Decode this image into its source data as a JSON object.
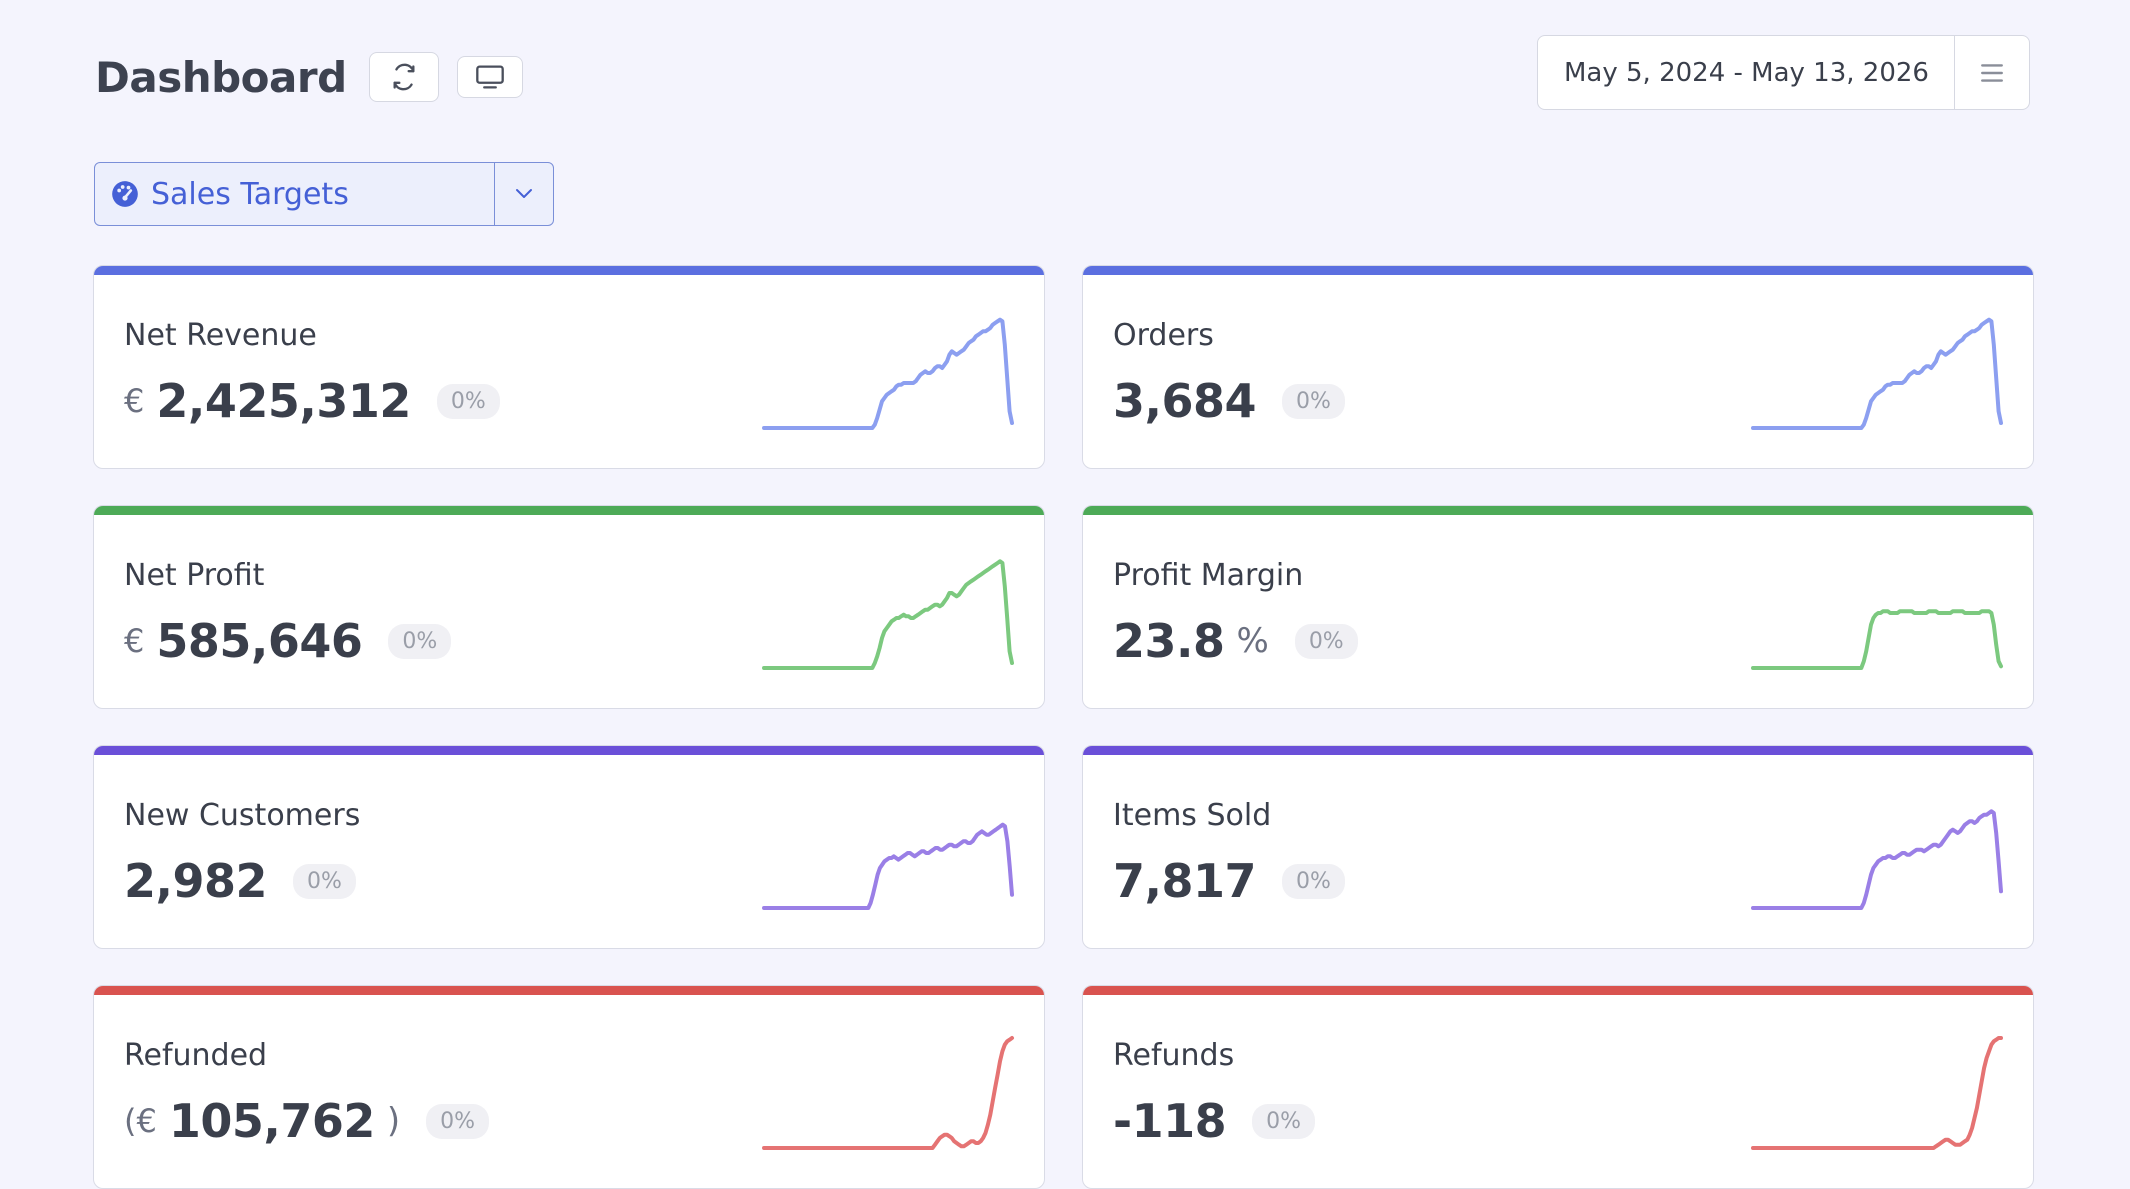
{
  "header": {
    "title": "Dashboard"
  },
  "date_range": {
    "label": "May 5, 2024 - May 13, 2026"
  },
  "report": {
    "label": "Sales Targets"
  },
  "icons": {
    "refresh": "refresh-icon",
    "monitor": "monitor-icon",
    "menu": "menu-icon",
    "gauge": "gauge-icon",
    "caret": "chevron-down-icon"
  },
  "cards": [
    {
      "label": "Net Revenue",
      "currency": "€",
      "value": "2,425,312",
      "unit": "",
      "badge": "0%",
      "color": "#5b6fe0",
      "spark_color": "#8c9ff0",
      "spark": [
        0,
        0,
        0,
        0,
        0,
        0,
        0,
        0,
        0,
        0,
        0,
        0,
        0,
        0,
        0,
        0,
        0,
        0,
        0,
        0,
        0,
        0,
        0,
        0,
        0,
        0,
        0,
        0,
        0,
        0,
        0,
        0,
        0,
        0,
        0,
        0,
        0,
        0,
        0,
        0,
        0,
        0,
        0,
        0,
        0,
        0,
        2,
        6,
        11,
        16,
        18,
        20,
        21,
        22,
        23,
        25,
        26,
        26,
        27,
        27,
        27,
        27,
        27,
        28,
        30,
        32,
        33,
        34,
        33,
        33,
        34,
        36,
        37,
        37,
        36,
        38,
        40,
        44,
        46,
        45,
        44,
        45,
        46,
        47,
        49,
        51,
        52,
        53,
        55,
        56,
        57,
        58,
        58,
        59,
        60,
        62,
        63,
        64,
        65,
        64,
        50,
        30,
        10,
        3
      ]
    },
    {
      "label": "Orders",
      "currency": "",
      "value": "3,684",
      "unit": "",
      "badge": "0%",
      "color": "#5b6fe0",
      "spark_color": "#8c9ff0",
      "spark": [
        0,
        0,
        0,
        0,
        0,
        0,
        0,
        0,
        0,
        0,
        0,
        0,
        0,
        0,
        0,
        0,
        0,
        0,
        0,
        0,
        0,
        0,
        0,
        0,
        0,
        0,
        0,
        0,
        0,
        0,
        0,
        0,
        0,
        0,
        0,
        0,
        0,
        0,
        0,
        0,
        0,
        0,
        0,
        0,
        0,
        0,
        2,
        6,
        11,
        16,
        18,
        20,
        21,
        22,
        23,
        25,
        26,
        26,
        27,
        27,
        27,
        27,
        27,
        28,
        30,
        32,
        33,
        34,
        33,
        33,
        34,
        36,
        37,
        37,
        36,
        38,
        40,
        44,
        46,
        45,
        44,
        45,
        46,
        47,
        49,
        51,
        52,
        53,
        55,
        56,
        57,
        58,
        58,
        59,
        60,
        62,
        63,
        64,
        65,
        64,
        50,
        30,
        10,
        3
      ]
    },
    {
      "label": "Net Profit",
      "currency": "€",
      "value": "585,646",
      "unit": "",
      "badge": "0%",
      "color": "#4daa57",
      "spark_color": "#7cc97f",
      "spark": [
        0,
        0,
        0,
        0,
        0,
        0,
        0,
        0,
        0,
        0,
        0,
        0,
        0,
        0,
        0,
        0,
        0,
        0,
        0,
        0,
        0,
        0,
        0,
        0,
        0,
        0,
        0,
        0,
        0,
        0,
        0,
        0,
        0,
        0,
        0,
        0,
        0,
        0,
        0,
        0,
        0,
        0,
        0,
        0,
        0,
        0,
        3,
        7,
        12,
        18,
        22,
        24,
        26,
        28,
        29,
        30,
        30,
        31,
        32,
        31,
        31,
        30,
        30,
        31,
        32,
        33,
        34,
        35,
        35,
        36,
        37,
        38,
        38,
        37,
        38,
        40,
        42,
        45,
        45,
        44,
        43,
        44,
        46,
        48,
        50,
        51,
        52,
        53,
        54,
        55,
        56,
        57,
        58,
        59,
        60,
        61,
        62,
        63,
        64,
        63,
        49,
        30,
        10,
        3
      ]
    },
    {
      "label": "Profit Margin",
      "currency": "",
      "value": "23.8",
      "unit": "%",
      "badge": "0%",
      "color": "#4daa57",
      "spark_color": "#7cc97f",
      "spark": [
        0,
        0,
        0,
        0,
        0,
        0,
        0,
        0,
        0,
        0,
        0,
        0,
        0,
        0,
        0,
        0,
        0,
        0,
        0,
        0,
        0,
        0,
        0,
        0,
        0,
        0,
        0,
        0,
        0,
        0,
        0,
        0,
        0,
        0,
        0,
        0,
        0,
        0,
        0,
        0,
        0,
        0,
        0,
        0,
        0,
        0,
        4,
        10,
        18,
        26,
        30,
        32,
        33,
        33,
        34,
        34,
        34,
        33,
        33,
        33,
        33,
        34,
        34,
        34,
        34,
        34,
        34,
        33,
        33,
        33,
        33,
        33,
        33,
        34,
        34,
        34,
        34,
        33,
        33,
        33,
        33,
        33,
        33,
        34,
        34,
        34,
        34,
        34,
        33,
        33,
        33,
        33,
        33,
        33,
        33,
        34,
        34,
        34,
        34,
        33,
        26,
        14,
        4,
        1
      ]
    },
    {
      "label": "New Customers",
      "currency": "",
      "value": "2,982",
      "unit": "",
      "badge": "0%",
      "color": "#6a4fd8",
      "spark_color": "#9a7fe6",
      "spark": [
        0,
        0,
        0,
        0,
        0,
        0,
        0,
        0,
        0,
        0,
        0,
        0,
        0,
        0,
        0,
        0,
        0,
        0,
        0,
        0,
        0,
        0,
        0,
        0,
        0,
        0,
        0,
        0,
        0,
        0,
        0,
        0,
        0,
        0,
        0,
        0,
        0,
        0,
        0,
        0,
        0,
        0,
        0,
        0,
        0,
        0,
        3,
        8,
        14,
        20,
        24,
        26,
        28,
        29,
        30,
        30,
        31,
        30,
        29,
        30,
        31,
        32,
        33,
        33,
        32,
        31,
        32,
        33,
        34,
        34,
        33,
        33,
        34,
        35,
        36,
        36,
        35,
        35,
        36,
        37,
        38,
        38,
        37,
        37,
        38,
        39,
        40,
        40,
        39,
        39,
        40,
        42,
        44,
        45,
        46,
        45,
        44,
        44,
        45,
        46,
        47,
        48,
        49,
        50,
        49,
        40,
        25,
        8
      ]
    },
    {
      "label": "Items Sold",
      "currency": "",
      "value": "7,817",
      "unit": "",
      "badge": "0%",
      "color": "#6a4fd8",
      "spark_color": "#9a7fe6",
      "spark": [
        0,
        0,
        0,
        0,
        0,
        0,
        0,
        0,
        0,
        0,
        0,
        0,
        0,
        0,
        0,
        0,
        0,
        0,
        0,
        0,
        0,
        0,
        0,
        0,
        0,
        0,
        0,
        0,
        0,
        0,
        0,
        0,
        0,
        0,
        0,
        0,
        0,
        0,
        0,
        0,
        0,
        0,
        0,
        0,
        0,
        0,
        3,
        8,
        14,
        20,
        24,
        26,
        28,
        29,
        30,
        30,
        31,
        31,
        30,
        30,
        31,
        32,
        33,
        33,
        32,
        32,
        33,
        34,
        35,
        35,
        35,
        34,
        35,
        36,
        37,
        38,
        38,
        37,
        38,
        40,
        42,
        44,
        46,
        47,
        46,
        45,
        46,
        48,
        50,
        51,
        52,
        52,
        51,
        52,
        54,
        55,
        56,
        56,
        57,
        58,
        57,
        45,
        28,
        10
      ]
    },
    {
      "label": "Refunded",
      "currency": "(€",
      "value": "105,762",
      "unit": ")",
      "badge": "0%",
      "color": "#d9534f",
      "spark_color": "#e57373",
      "spark": [
        0,
        0,
        0,
        0,
        0,
        0,
        0,
        0,
        0,
        0,
        0,
        0,
        0,
        0,
        0,
        0,
        0,
        0,
        0,
        0,
        0,
        0,
        0,
        0,
        0,
        0,
        0,
        0,
        0,
        0,
        0,
        0,
        0,
        0,
        0,
        0,
        0,
        0,
        0,
        0,
        0,
        0,
        0,
        0,
        0,
        0,
        0,
        0,
        0,
        0,
        0,
        0,
        0,
        0,
        0,
        0,
        0,
        0,
        0,
        0,
        0,
        0,
        0,
        0,
        0,
        0,
        0,
        0,
        0,
        0,
        0,
        2,
        4,
        6,
        7,
        8,
        8,
        7,
        6,
        4,
        3,
        2,
        1,
        1,
        2,
        3,
        4,
        4,
        3,
        3,
        4,
        6,
        9,
        14,
        20,
        28,
        36,
        44,
        52,
        58,
        62,
        64,
        65,
        66
      ]
    },
    {
      "label": "Refunds",
      "currency": "",
      "value": "-118",
      "unit": "",
      "badge": "0%",
      "color": "#d9534f",
      "spark_color": "#e57373",
      "spark": [
        0,
        0,
        0,
        0,
        0,
        0,
        0,
        0,
        0,
        0,
        0,
        0,
        0,
        0,
        0,
        0,
        0,
        0,
        0,
        0,
        0,
        0,
        0,
        0,
        0,
        0,
        0,
        0,
        0,
        0,
        0,
        0,
        0,
        0,
        0,
        0,
        0,
        0,
        0,
        0,
        0,
        0,
        0,
        0,
        0,
        0,
        0,
        0,
        0,
        0,
        0,
        0,
        0,
        0,
        0,
        0,
        0,
        0,
        0,
        0,
        0,
        0,
        0,
        0,
        0,
        0,
        0,
        0,
        0,
        0,
        0,
        0,
        0,
        0,
        0,
        0,
        1,
        2,
        3,
        4,
        5,
        5,
        4,
        3,
        2,
        2,
        2,
        3,
        4,
        5,
        8,
        12,
        18,
        24,
        32,
        40,
        48,
        54,
        58,
        62,
        64,
        65,
        66,
        66
      ]
    }
  ]
}
